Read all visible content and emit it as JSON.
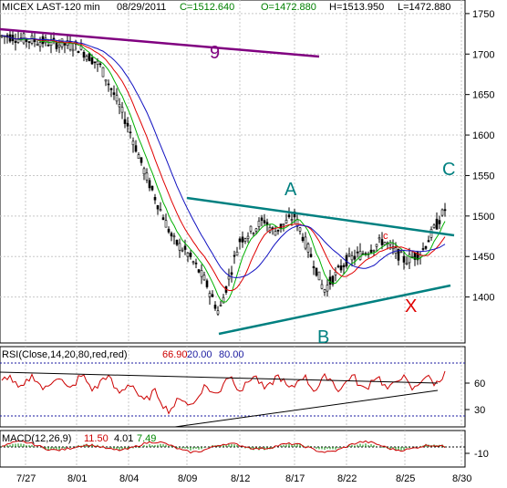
{
  "header": {
    "symbol": "MICEX LAST-120 min",
    "date": "08/29/2011",
    "close": "C=1512.640",
    "open": "O=1472.880",
    "high": "H=1513.950",
    "low": "L=1472.880"
  },
  "colors": {
    "price": "#000000",
    "ma_fast": "#00b000",
    "ma_mid": "#e00000",
    "ma_slow": "#1010c0",
    "trendline_teal": "#008080",
    "wave9": "#800080",
    "label_teal": "#008080",
    "label_red": "#e00000",
    "rsi_line": "#cc0000",
    "rsi_guides": "#1a1aa0",
    "macd_hist": "#008800",
    "macd_line": "#cc0000"
  },
  "annotations": {
    "wave9": "9",
    "A": "A",
    "B": "B",
    "C": "C",
    "c_small": "c",
    "X": "X"
  },
  "rsi": {
    "label": "RSI(Close,14,20,80,red,red)",
    "value": "66.90",
    "lower": "20.00",
    "upper": "80.00",
    "ticks": [
      "60",
      "30"
    ]
  },
  "macd": {
    "label": "MACD(12,26,9)",
    "macd": "11.50",
    "signal": "4.01",
    "hist": "7.49",
    "ticks": [
      "-10"
    ]
  },
  "chart_data": {
    "type": "candlestick",
    "title": "MICEX LAST-120 min",
    "ylim": [
      1350,
      1760
    ],
    "yticks": [
      1400,
      1450,
      1500,
      1550,
      1600,
      1650,
      1700,
      1750
    ],
    "xticks": [
      "7/27",
      "8/01",
      "8/04",
      "8/09",
      "8/12",
      "8/17",
      "8/22",
      "8/25",
      "8/30"
    ],
    "grid": true,
    "close_path": [
      [
        "7/27",
        1722
      ],
      [
        "7/29",
        1718
      ],
      [
        "8/01",
        1710
      ],
      [
        "8/02",
        1685
      ],
      [
        "8/03",
        1650
      ],
      [
        "8/04",
        1610
      ],
      [
        "8/05",
        1550
      ],
      [
        "8/08",
        1470
      ],
      [
        "8/09",
        1455
      ],
      [
        "8/10",
        1420
      ],
      [
        "8/11",
        1380
      ],
      [
        "8/12",
        1470
      ],
      [
        "8/15",
        1495
      ],
      [
        "8/16",
        1480
      ],
      [
        "8/17",
        1500
      ],
      [
        "8/18",
        1440
      ],
      [
        "8/19",
        1408
      ],
      [
        "8/22",
        1445
      ],
      [
        "8/23",
        1455
      ],
      [
        "8/24",
        1470
      ],
      [
        "8/25",
        1445
      ],
      [
        "8/26",
        1455
      ],
      [
        "8/29",
        1512
      ]
    ]
  }
}
